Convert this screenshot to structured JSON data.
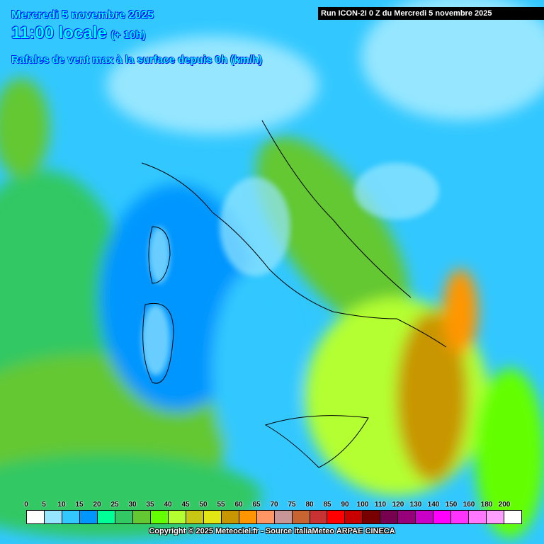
{
  "header": {
    "date": "Mercredi 5 novembre 2025",
    "time": "11:00 locale",
    "offset": "(+ 10h)",
    "parameter": "Rafales de vent max à la surface depuis 0h (km/h)",
    "run": "Run ICON-2I 0 Z du Mercredi 5 novembre 2025"
  },
  "legend": {
    "labels": [
      "0",
      "5",
      "10",
      "15",
      "20",
      "25",
      "30",
      "35",
      "40",
      "45",
      "50",
      "55",
      "60",
      "65",
      "70",
      "75",
      "80",
      "85",
      "90",
      "100",
      "110",
      "120",
      "130",
      "140",
      "150",
      "160",
      "180",
      "200"
    ],
    "colors": [
      "#ffffff",
      "#96e6ff",
      "#32c8ff",
      "#0096ff",
      "#00ff96",
      "#32c864",
      "#64c832",
      "#64ff00",
      "#b4ff32",
      "#c8c814",
      "#e1e614",
      "#c89600",
      "#ff9600",
      "#ff9664",
      "#c89696",
      "#c86432",
      "#c83232",
      "#ff0000",
      "#c80000",
      "#780000",
      "#780050",
      "#960078",
      "#c800c8",
      "#ff00ff",
      "#ff32ff",
      "#ff78ff",
      "#ffa0ff",
      "#ffffff"
    ]
  },
  "copyright": "Copyright © 2025 Meteociel.fr - Source italiaMeteo ARPAE CINECA"
}
